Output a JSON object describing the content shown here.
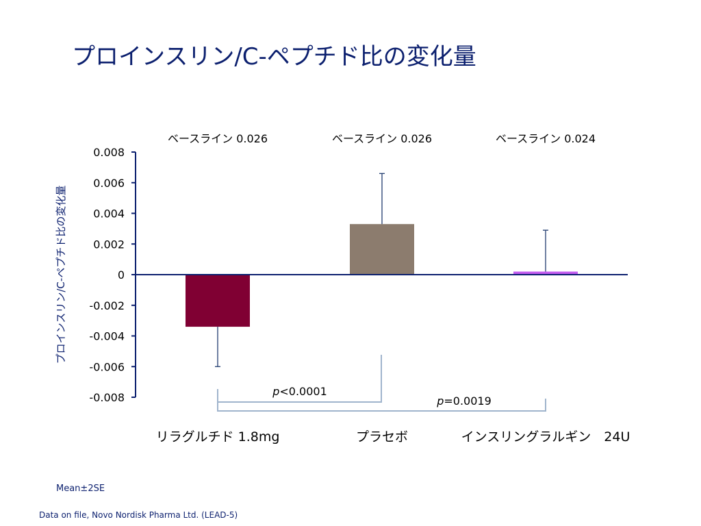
{
  "slide": {
    "title": "プロインスリン/C-ペプチド比の変化量",
    "note": "Mean±2SE",
    "source": "Data on file, Novo Nordisk Pharma Ltd. (LEAD-5)"
  },
  "colors": {
    "title": "#0b1f6e",
    "axis": "#0b1f6e",
    "bracket": "#9fb4cc",
    "error_bar": "#1f3a6e"
  },
  "chart_data": {
    "type": "bar",
    "title": "",
    "ylabel": "プロインスリン/C-ペプチド比の変化量",
    "xlabel": "",
    "ylim": [
      -0.008,
      0.008
    ],
    "yticks": [
      0.008,
      0.006,
      0.004,
      0.002,
      0,
      -0.002,
      -0.004,
      -0.006,
      -0.008
    ],
    "ytick_labels": [
      "0.008",
      "0.006",
      "0.004",
      "0.002",
      "0",
      "-0.002",
      "-0.004",
      "-0.006",
      "-0.008"
    ],
    "grid": false,
    "categories": [
      "リラグルチド 1.8mg",
      "プラセボ",
      "インスリングラルギン　24U"
    ],
    "values": [
      -0.0034,
      0.0033,
      0.0002
    ],
    "error_2se": [
      0.0026,
      0.0033,
      0.0027
    ],
    "bar_colors": [
      "#800033",
      "#8c7c6e",
      "#c45cf0"
    ],
    "baseline_labels": [
      "ベースライン 0.026",
      "ベースライン 0.026",
      "ベースライン 0.024"
    ],
    "comparisons": [
      {
        "from": 0,
        "to": 1,
        "p_symbol": "p",
        "p_text": "<0.0001"
      },
      {
        "from": 0,
        "to": 2,
        "p_symbol": "p",
        "p_text": "=0.0019"
      }
    ]
  }
}
